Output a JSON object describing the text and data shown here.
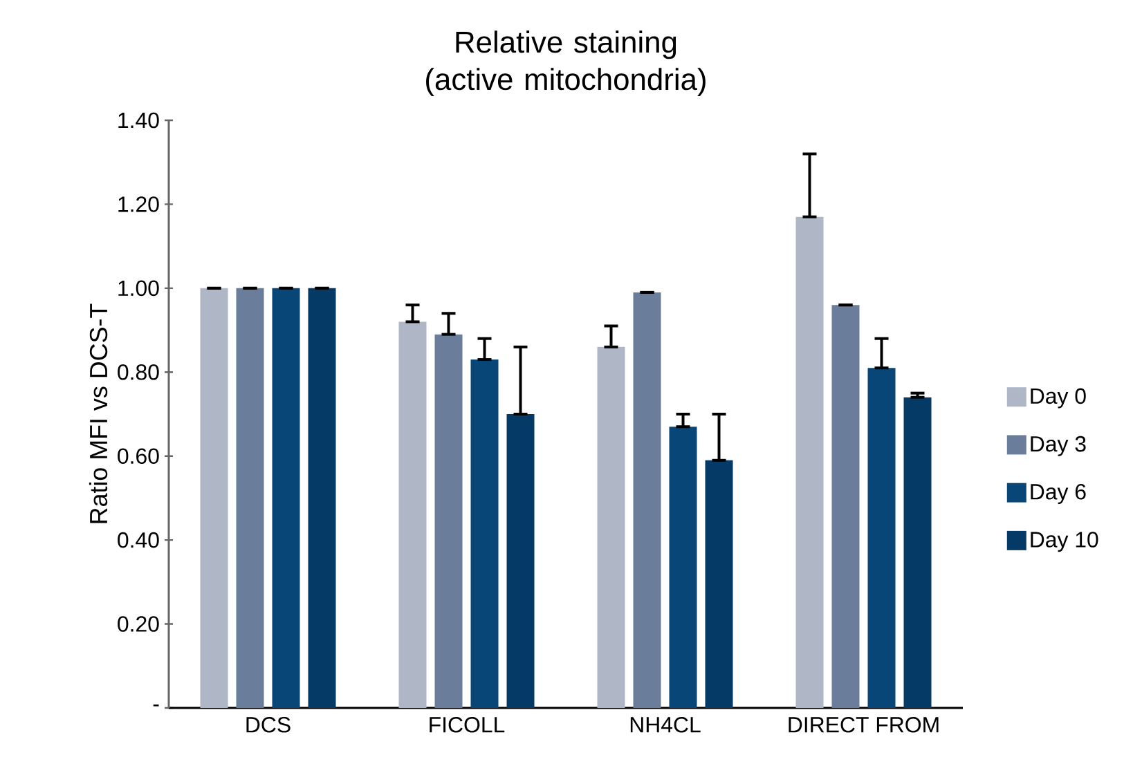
{
  "chart_data": {
    "type": "bar",
    "title": "Relative staining (active mitochondria)",
    "ylabel": "Ratio MFI vs DCS-T",
    "categories": [
      "DCS",
      "FICOLL",
      "NH4CL",
      "DIRECT FROM"
    ],
    "series": [
      {
        "name": "Day 0",
        "color": "#afb6c6",
        "values": [
          1.0,
          0.92,
          0.86,
          1.17
        ],
        "errors": [
          [
            1.0,
            1.0
          ],
          [
            0.92,
            0.96
          ],
          [
            0.86,
            0.91
          ],
          [
            1.17,
            1.32
          ]
        ]
      },
      {
        "name": "Day 3",
        "color": "#6a7e9c",
        "values": [
          1.0,
          0.89,
          0.99,
          0.96
        ],
        "errors": [
          [
            1.0,
            1.0
          ],
          [
            0.89,
            0.94
          ],
          [
            0.99,
            0.99
          ],
          [
            0.96,
            0.96
          ]
        ]
      },
      {
        "name": "Day 6",
        "color": "#084677",
        "values": [
          1.0,
          0.83,
          0.67,
          0.81
        ],
        "errors": [
          [
            1.0,
            1.0
          ],
          [
            0.83,
            0.88
          ],
          [
            0.67,
            0.7
          ],
          [
            0.81,
            0.88
          ]
        ]
      },
      {
        "name": "Day 10",
        "color": "#063a66",
        "values": [
          1.0,
          0.7,
          0.59,
          0.74
        ],
        "errors": [
          [
            1.0,
            1.0
          ],
          [
            0.7,
            0.86
          ],
          [
            0.59,
            0.7
          ],
          [
            0.74,
            0.75
          ]
        ]
      }
    ],
    "ylim": [
      0,
      1.4
    ],
    "yticks": [
      {
        "value": 0,
        "label": "-"
      },
      {
        "value": 0.2,
        "label": "0.20"
      },
      {
        "value": 0.4,
        "label": "0.40"
      },
      {
        "value": 0.6,
        "label": "0.60"
      },
      {
        "value": 0.8,
        "label": "0.80"
      },
      {
        "value": 1.0,
        "label": "1.00"
      },
      {
        "value": 1.2,
        "label": "1.20"
      },
      {
        "value": 1.4,
        "label": "1.40"
      }
    ],
    "legend": "right"
  }
}
